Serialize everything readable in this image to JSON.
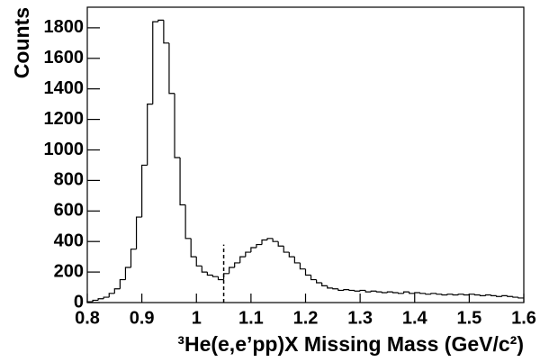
{
  "chart_data": {
    "type": "histogram",
    "ylabel": "Counts",
    "xlabel": "³He(e,e’pp)X Missing Mass (GeV/c²)",
    "bins": [
      0.8,
      0.81,
      0.82,
      0.83,
      0.84,
      0.85,
      0.86,
      0.87,
      0.88,
      0.89,
      0.9,
      0.91,
      0.92,
      0.93,
      0.94,
      0.95,
      0.96,
      0.97,
      0.98,
      0.99,
      1.0,
      1.01,
      1.02,
      1.03,
      1.04,
      1.05,
      1.06,
      1.07,
      1.08,
      1.09,
      1.1,
      1.11,
      1.12,
      1.13,
      1.14,
      1.15,
      1.16,
      1.17,
      1.18,
      1.19,
      1.2,
      1.21,
      1.22,
      1.23,
      1.24,
      1.25,
      1.26,
      1.27,
      1.28,
      1.29,
      1.3,
      1.31,
      1.32,
      1.33,
      1.34,
      1.35,
      1.36,
      1.37,
      1.38,
      1.39,
      1.4,
      1.41,
      1.42,
      1.43,
      1.44,
      1.45,
      1.46,
      1.47,
      1.48,
      1.49,
      1.5,
      1.51,
      1.52,
      1.53,
      1.54,
      1.55,
      1.56,
      1.57,
      1.58,
      1.59,
      1.6
    ],
    "values": [
      5,
      15,
      25,
      35,
      60,
      90,
      150,
      230,
      350,
      560,
      900,
      1300,
      1840,
      1850,
      1700,
      1370,
      950,
      640,
      420,
      300,
      240,
      200,
      180,
      170,
      150,
      190,
      230,
      260,
      300,
      330,
      360,
      380,
      410,
      420,
      400,
      370,
      330,
      300,
      260,
      220,
      180,
      150,
      130,
      110,
      95,
      90,
      80,
      85,
      80,
      75,
      80,
      70,
      75,
      70,
      65,
      70,
      65,
      60,
      70,
      60,
      65,
      60,
      55,
      60,
      55,
      50,
      55,
      50,
      55,
      50,
      55,
      50,
      45,
      50,
      45,
      40,
      45,
      40,
      35,
      30
    ],
    "color": "#000000",
    "cut_line": {
      "x": 1.05,
      "y": 380
    },
    "xlim": [
      0.8,
      1.6
    ],
    "xticks": [
      0.8,
      0.9,
      1,
      1.1,
      1.2,
      1.3,
      1.4,
      1.5,
      1.6
    ],
    "ylim": [
      0,
      1935
    ],
    "yticks": [
      0,
      200,
      400,
      600,
      800,
      1000,
      1200,
      1400,
      1600,
      1800
    ],
    "grid": false
  }
}
